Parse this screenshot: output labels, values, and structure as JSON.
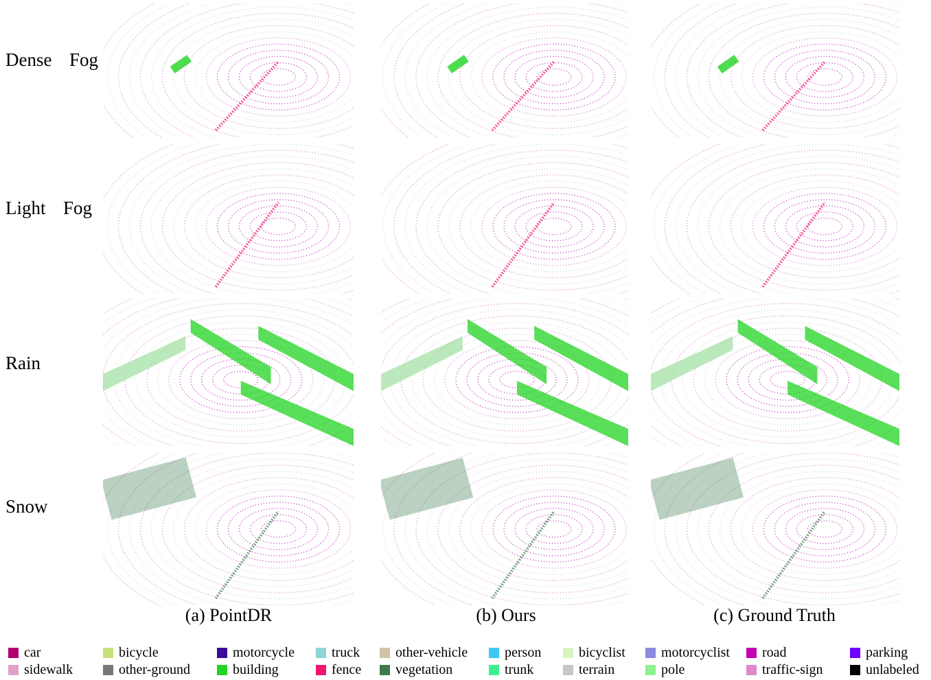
{
  "figure": {
    "row_labels": [
      "Dense  Fog",
      "Light  Fog",
      "Rain",
      "Snow"
    ],
    "column_captions": [
      "(a) PointDR",
      "(b) Ours",
      "(c) Ground Truth"
    ],
    "legend": [
      {
        "name": "car",
        "color": "#b0006e"
      },
      {
        "name": "bicycle",
        "color": "#c5e27a"
      },
      {
        "name": "motorcycle",
        "color": "#3c0a9a"
      },
      {
        "name": "truck",
        "color": "#8fd6d6"
      },
      {
        "name": "other-vehicle",
        "color": "#d2c2a8"
      },
      {
        "name": "person",
        "color": "#3cc8f0"
      },
      {
        "name": "bicyclist",
        "color": "#d4f5c0"
      },
      {
        "name": "motorcyclist",
        "color": "#8a8ae0"
      },
      {
        "name": "road",
        "color": "#c400b4"
      },
      {
        "name": "parking",
        "color": "#7000ff"
      },
      {
        "name": "sidewalk",
        "color": "#e0a0c8"
      },
      {
        "name": "other-ground",
        "color": "#787878"
      },
      {
        "name": "building",
        "color": "#22d422"
      },
      {
        "name": "fence",
        "color": "#f0146e"
      },
      {
        "name": "vegetation",
        "color": "#3c7c4c"
      },
      {
        "name": "trunk",
        "color": "#3cf08c"
      },
      {
        "name": "terrain",
        "color": "#c8c8c8"
      },
      {
        "name": "pole",
        "color": "#8ef08e"
      },
      {
        "name": "traffic-sign",
        "color": "#e088d0"
      },
      {
        "name": "unlabeled",
        "color": "#000000"
      }
    ]
  }
}
